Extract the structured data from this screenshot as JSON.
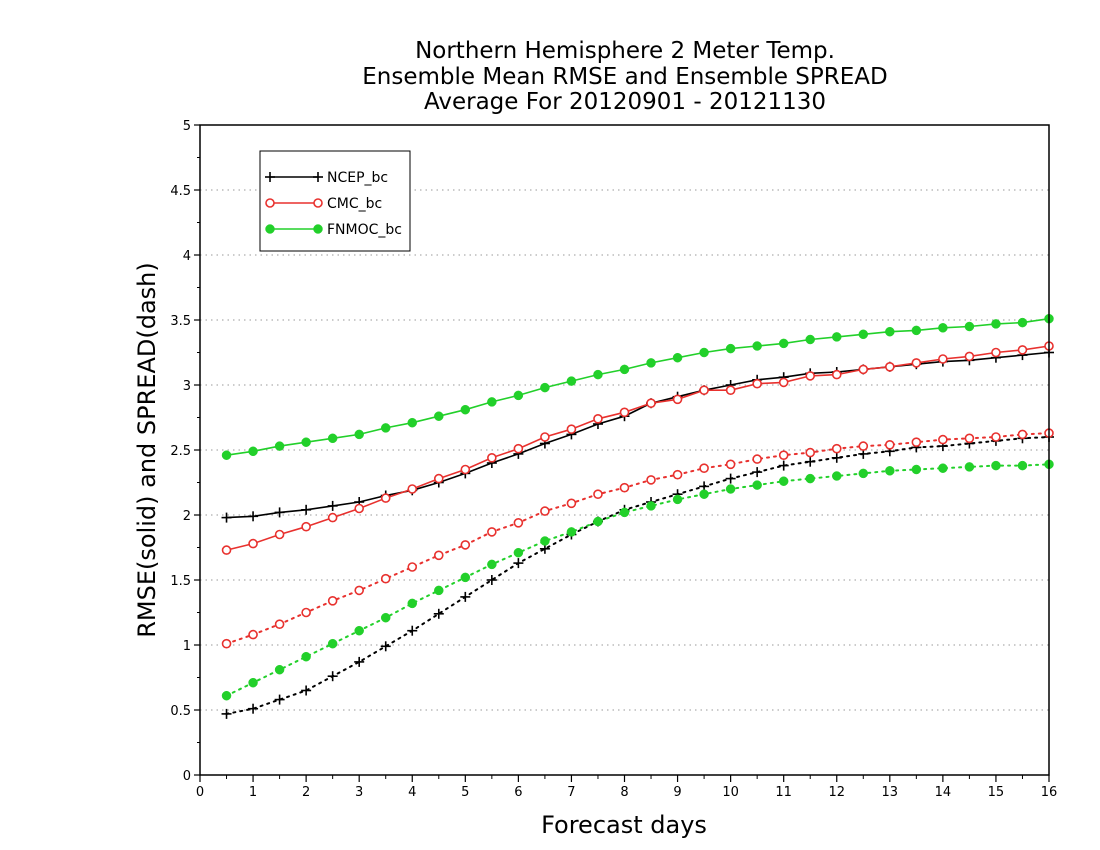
{
  "chart_data": {
    "type": "line",
    "title": [
      "Northern Hemisphere 2 Meter Temp.",
      "Ensemble Mean RMSE and Ensemble SPREAD",
      "Average For 20120901 - 20121130"
    ],
    "xlabel": "Forecast days",
    "ylabel": "RMSE(solid) and SPREAD(dash)",
    "xlim": [
      0,
      16
    ],
    "ylim": [
      0,
      5
    ],
    "xticks": [
      0,
      1,
      2,
      3,
      4,
      5,
      6,
      7,
      8,
      9,
      10,
      11,
      12,
      13,
      14,
      15,
      16
    ],
    "yticks": [
      0,
      0.5,
      1,
      1.5,
      2,
      2.5,
      3,
      3.5,
      4,
      4.5,
      5
    ],
    "grid": "horizontal dotted",
    "legend_position": "top-left",
    "x": [
      0.5,
      1,
      1.5,
      2,
      2.5,
      3,
      3.5,
      4,
      4.5,
      5,
      5.5,
      6,
      6.5,
      7,
      7.5,
      8,
      8.5,
      9,
      9.5,
      10,
      10.5,
      11,
      11.5,
      12,
      12.5,
      13,
      13.5,
      14,
      14.5,
      15,
      15.5,
      16
    ],
    "series": [
      {
        "name": "NCEP_bc",
        "color": "#000000",
        "marker": "plus",
        "rmse": [
          1.98,
          1.99,
          2.02,
          2.04,
          2.07,
          2.1,
          2.15,
          2.19,
          2.25,
          2.32,
          2.4,
          2.47,
          2.55,
          2.62,
          2.7,
          2.76,
          2.86,
          2.91,
          2.96,
          3.0,
          3.04,
          3.06,
          3.09,
          3.1,
          3.12,
          3.14,
          3.16,
          3.18,
          3.19,
          3.21,
          3.23,
          3.25
        ],
        "spread": [
          0.47,
          0.51,
          0.58,
          0.65,
          0.76,
          0.87,
          0.99,
          1.11,
          1.24,
          1.37,
          1.5,
          1.63,
          1.74,
          1.85,
          1.95,
          2.04,
          2.1,
          2.16,
          2.22,
          2.28,
          2.33,
          2.38,
          2.41,
          2.44,
          2.47,
          2.49,
          2.52,
          2.53,
          2.55,
          2.57,
          2.59,
          2.6
        ]
      },
      {
        "name": "CMC_bc",
        "color": "#e8312e",
        "marker": "open-circle",
        "rmse": [
          1.73,
          1.78,
          1.85,
          1.91,
          1.98,
          2.05,
          2.13,
          2.2,
          2.28,
          2.35,
          2.44,
          2.51,
          2.6,
          2.66,
          2.74,
          2.79,
          2.86,
          2.89,
          2.96,
          2.96,
          3.01,
          3.02,
          3.07,
          3.08,
          3.12,
          3.14,
          3.17,
          3.2,
          3.22,
          3.25,
          3.27,
          3.3
        ],
        "spread": [
          1.01,
          1.08,
          1.16,
          1.25,
          1.34,
          1.42,
          1.51,
          1.6,
          1.69,
          1.77,
          1.87,
          1.94,
          2.03,
          2.09,
          2.16,
          2.21,
          2.27,
          2.31,
          2.36,
          2.39,
          2.43,
          2.46,
          2.48,
          2.51,
          2.53,
          2.54,
          2.56,
          2.58,
          2.59,
          2.6,
          2.62,
          2.63
        ]
      },
      {
        "name": "FNMOC_bc",
        "color": "#22d02a",
        "marker": "filled-circle",
        "rmse": [
          2.46,
          2.49,
          2.53,
          2.56,
          2.59,
          2.62,
          2.67,
          2.71,
          2.76,
          2.81,
          2.87,
          2.92,
          2.98,
          3.03,
          3.08,
          3.12,
          3.17,
          3.21,
          3.25,
          3.28,
          3.3,
          3.32,
          3.35,
          3.37,
          3.39,
          3.41,
          3.42,
          3.44,
          3.45,
          3.47,
          3.48,
          3.51
        ],
        "spread": [
          0.61,
          0.71,
          0.81,
          0.91,
          1.01,
          1.11,
          1.21,
          1.32,
          1.42,
          1.52,
          1.62,
          1.71,
          1.8,
          1.87,
          1.95,
          2.02,
          2.07,
          2.12,
          2.16,
          2.2,
          2.23,
          2.26,
          2.28,
          2.3,
          2.32,
          2.34,
          2.35,
          2.36,
          2.37,
          2.38,
          2.38,
          2.39
        ]
      }
    ]
  }
}
